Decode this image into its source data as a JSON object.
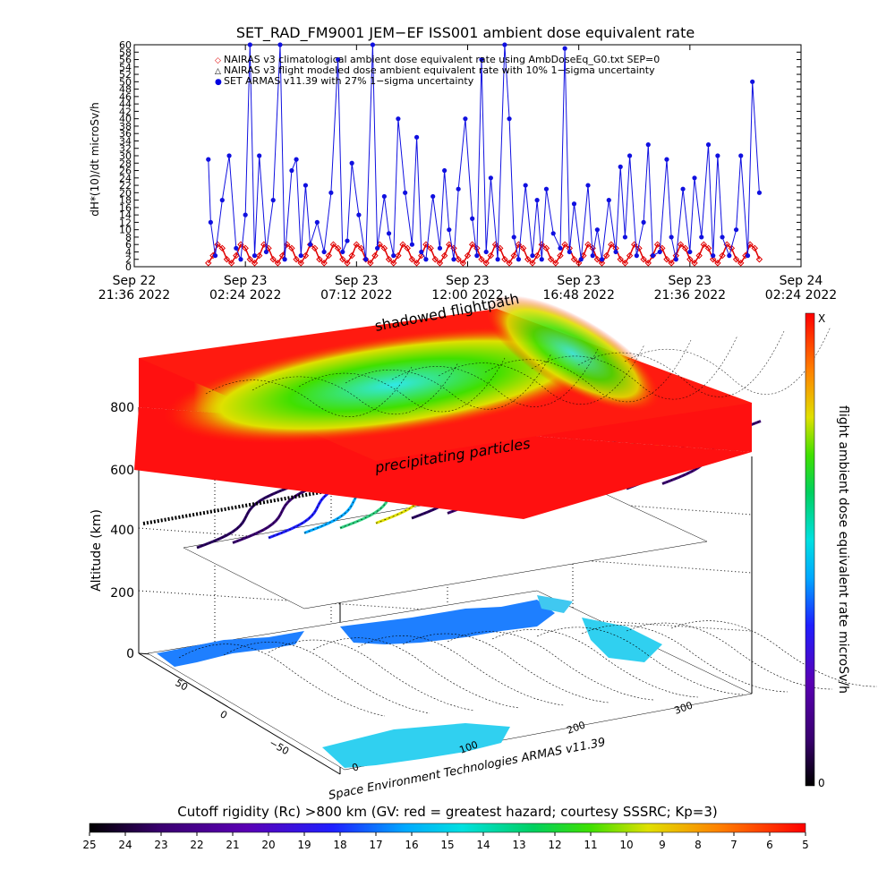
{
  "chart_data": [
    {
      "type": "scatter",
      "title": "SET_RAD_FM9001  JEM−EF ISS001 ambient dose equivalent rate",
      "ylabel": "dH*(10)/dt microSv/h",
      "ylim": [
        0,
        60
      ],
      "yticks": [
        "0",
        "2",
        "4",
        "6",
        "8",
        "10",
        "12",
        "14",
        "16",
        "18",
        "20",
        "22",
        "24",
        "26",
        "28",
        "30",
        "32",
        "34",
        "36",
        "38",
        "40",
        "42",
        "44",
        "46",
        "48",
        "50",
        "52",
        "54",
        "56",
        "58",
        "60"
      ],
      "xlim_hours": [
        0,
        28.8
      ],
      "xticks": [
        {
          "h": 0,
          "top": "Sep 22",
          "bottom": "21:36  2022"
        },
        {
          "h": 4.8,
          "top": "Sep 23",
          "bottom": "02:24  2022"
        },
        {
          "h": 9.6,
          "top": "Sep 23",
          "bottom": "07:12  2022"
        },
        {
          "h": 14.4,
          "top": "Sep 23",
          "bottom": "12:00  2022"
        },
        {
          "h": 19.2,
          "top": "Sep 23",
          "bottom": "16:48  2022"
        },
        {
          "h": 24.0,
          "top": "Sep 23",
          "bottom": "21:36  2022"
        },
        {
          "h": 28.8,
          "top": "Sep 24",
          "bottom": "02:24  2022"
        }
      ],
      "legend": [
        {
          "symbol": "◇",
          "color": "#e00000",
          "text": "NAIRAS v3 climatological ambient dose equivalent rate using AmbDoseEq_G0.txt SEP=0"
        },
        {
          "symbol": "△",
          "color": "#000000",
          "text": "NAIRAS v3 flight modeled dose ambient equivalent rate with 10% 1−sigma uncertainty"
        },
        {
          "symbol": "●",
          "color": "#0000e0",
          "text": "SET ARMAS v11.39 with 27% 1−sigma uncertainty"
        }
      ],
      "legend_position": "top",
      "series": [
        {
          "name": "SET ARMAS v11.39 with 27% 1−sigma uncertainty",
          "color": "#1010e0",
          "x": [
            3.2,
            3.3,
            3.5,
            3.8,
            4.1,
            4.4,
            4.6,
            4.8,
            5.0,
            5.2,
            5.4,
            5.7,
            6.0,
            6.3,
            6.5,
            6.8,
            7.0,
            7.2,
            7.4,
            7.6,
            7.9,
            8.2,
            8.5,
            8.8,
            9.0,
            9.2,
            9.4,
            9.7,
            10.0,
            10.3,
            10.5,
            10.8,
            11.0,
            11.2,
            11.4,
            11.7,
            12.0,
            12.2,
            12.4,
            12.6,
            12.9,
            13.2,
            13.4,
            13.6,
            13.8,
            14.0,
            14.3,
            14.6,
            14.8,
            15.0,
            15.2,
            15.4,
            15.7,
            16.0,
            16.2,
            16.4,
            16.6,
            16.9,
            17.2,
            17.4,
            17.6,
            17.8,
            18.1,
            18.4,
            18.6,
            18.8,
            19.0,
            19.3,
            19.6,
            19.8,
            20.0,
            20.2,
            20.5,
            20.8,
            21.0,
            21.2,
            21.4,
            21.7,
            22.0,
            22.2,
            22.4,
            22.7,
            23.0,
            23.2,
            23.4,
            23.7,
            24.0,
            24.2,
            24.5,
            24.8,
            25.0,
            25.2,
            25.4,
            25.7,
            26.0,
            26.2,
            26.5,
            26.7,
            27.0
          ],
          "y": [
            29,
            12,
            3,
            18,
            30,
            5,
            2,
            14,
            60,
            3,
            30,
            4,
            18,
            60,
            2,
            26,
            29,
            3,
            22,
            6,
            12,
            4,
            20,
            56,
            4,
            7,
            28,
            14,
            2,
            60,
            5,
            19,
            9,
            3,
            40,
            20,
            6,
            35,
            4,
            2,
            19,
            5,
            26,
            10,
            2,
            21,
            40,
            13,
            3,
            56,
            4,
            24,
            2,
            60,
            40,
            8,
            2,
            22,
            3,
            18,
            2,
            21,
            9,
            5,
            59,
            4,
            17,
            2,
            22,
            3,
            10,
            2,
            18,
            4,
            27,
            8,
            30,
            3,
            12,
            33,
            3,
            4,
            29,
            8,
            2,
            21,
            4,
            24,
            8,
            33,
            3,
            30,
            8,
            3,
            10,
            30,
            3,
            50,
            20
          ]
        },
        {
          "name": "NAIRAS v3 climatological ambient dose equivalent rate using AmbDoseEq_G0.txt SEP=0",
          "color": "#e00000",
          "x": [
            3.2,
            3.4,
            3.6,
            3.8,
            4.0,
            4.2,
            4.4,
            4.6,
            4.8,
            5.0,
            5.2,
            5.4,
            5.6,
            5.8,
            6.0,
            6.2,
            6.4,
            6.6,
            6.8,
            7.0,
            7.2,
            7.4,
            7.6,
            7.8,
            8.0,
            8.2,
            8.4,
            8.6,
            8.8,
            9.0,
            9.2,
            9.4,
            9.6,
            9.8,
            10.0,
            10.2,
            10.4,
            10.6,
            10.8,
            11.0,
            11.2,
            11.4,
            11.6,
            11.8,
            12.0,
            12.2,
            12.4,
            12.6,
            12.8,
            13.0,
            13.2,
            13.4,
            13.6,
            13.8,
            14.0,
            14.2,
            14.4,
            14.6,
            14.8,
            15.0,
            15.2,
            15.4,
            15.6,
            15.8,
            16.0,
            16.2,
            16.4,
            16.6,
            16.8,
            17.0,
            17.2,
            17.4,
            17.6,
            17.8,
            18.0,
            18.2,
            18.4,
            18.6,
            18.8,
            19.0,
            19.2,
            19.4,
            19.6,
            19.8,
            20.0,
            20.2,
            20.4,
            20.6,
            20.8,
            21.0,
            21.2,
            21.4,
            21.6,
            21.8,
            22.0,
            22.2,
            22.4,
            22.6,
            22.8,
            23.0,
            23.2,
            23.4,
            23.6,
            23.8,
            24.0,
            24.2,
            24.4,
            24.6,
            24.8,
            25.0,
            25.2,
            25.4,
            25.6,
            25.8,
            26.0,
            26.2,
            26.4,
            26.6,
            26.8,
            27.0
          ],
          "y": [
            1,
            3,
            6,
            5,
            2,
            1,
            3,
            6,
            5,
            2,
            1,
            3,
            6,
            5,
            2,
            1,
            3,
            6,
            5,
            2,
            1,
            3,
            6,
            5,
            2,
            1,
            3,
            6,
            5,
            2,
            1,
            3,
            6,
            5,
            2,
            1,
            3,
            6,
            5,
            2,
            1,
            3,
            6,
            5,
            2,
            1,
            3,
            6,
            5,
            2,
            1,
            3,
            6,
            5,
            2,
            1,
            3,
            6,
            5,
            2,
            1,
            3,
            6,
            5,
            2,
            1,
            3,
            6,
            5,
            2,
            1,
            3,
            6,
            5,
            2,
            1,
            3,
            6,
            5,
            2,
            1,
            3,
            6,
            5,
            2,
            1,
            3,
            6,
            5,
            2,
            1,
            3,
            6,
            5,
            2,
            1,
            3,
            6,
            5,
            2,
            1,
            3,
            6,
            5,
            2,
            1,
            3,
            6,
            5,
            2,
            1,
            3,
            6,
            5,
            2,
            1,
            3,
            6,
            5,
            2
          ]
        }
      ]
    },
    {
      "type": "heatmap",
      "zlabel": "Altitude (km)",
      "zticks": [
        "0",
        "200",
        "400",
        "600",
        "800"
      ],
      "colorbar_label": "flight ambient dose equivalent rate microSv/h",
      "colorbar_top": "X",
      "colorbar_bottom": "0",
      "text_shadowed": "shadowed flightpath",
      "text_precipitating": "precipitating particles",
      "lat_ticks": [
        "50",
        "0",
        "−50"
      ],
      "lon_ticks": [
        "0",
        "100",
        "200",
        "300"
      ],
      "credit": "Space Environment Technologies ARMAS v11.39"
    },
    {
      "type": "heatmap",
      "title": "Cutoff rigidity (Rc) >800 km (GV: red = greatest hazard; courtesy SSSRC; Kp=3)",
      "ticks": [
        "25",
        "24",
        "23",
        "22",
        "21",
        "20",
        "19",
        "18",
        "17",
        "16",
        "15",
        "14",
        "13",
        "12",
        "11",
        "10",
        "9",
        "8",
        "7",
        "6",
        "5"
      ]
    }
  ]
}
